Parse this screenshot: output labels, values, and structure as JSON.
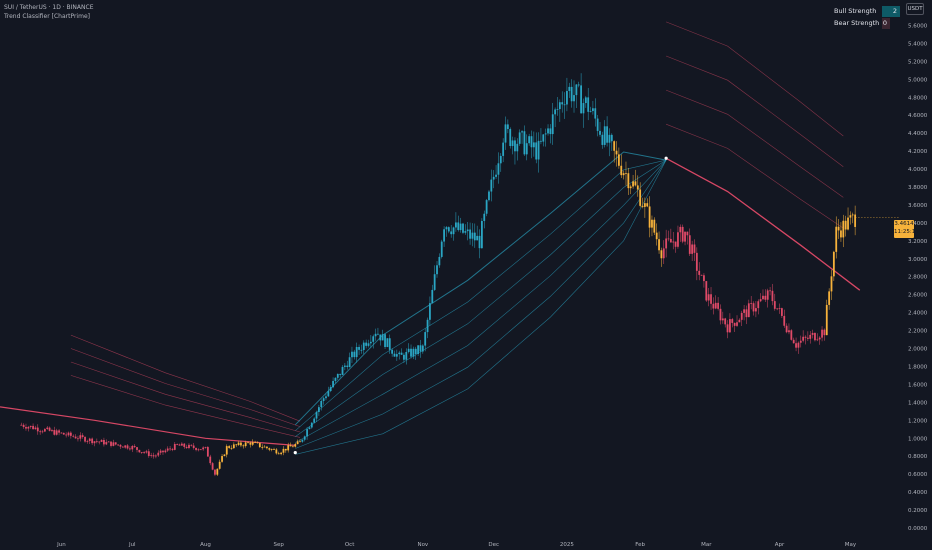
{
  "header": {
    "symbol": "SUI / TetherUS · 1D · BINANCE",
    "indicator": "Trend Classifier [ChartPrime]"
  },
  "strength_panel": {
    "bull_label": "Bull Strength",
    "bull_value": "2",
    "bear_label": "Bear Strength",
    "bear_value": "0"
  },
  "currency": "USDT",
  "price_tag": {
    "price": "3.4614",
    "countdown": "11:25:14"
  },
  "colors": {
    "background": "#131722",
    "bull": "#2aa6c4",
    "bear": "#e04a68",
    "neutral": "#f7b23b",
    "axis_text": "#b2b5be"
  },
  "chart_data": {
    "type": "candlestick",
    "title": "SUI / TetherUS · 1D · BINANCE",
    "ylim": [
      0,
      5.75
    ],
    "y_ticks": [
      "0.0000",
      "0.2000",
      "0.4000",
      "0.6000",
      "0.8000",
      "1.0000",
      "1.2000",
      "1.4000",
      "1.6000",
      "1.8000",
      "2.0000",
      "2.2000",
      "2.4000",
      "2.6000",
      "2.8000",
      "3.0000",
      "3.2000",
      "3.4000",
      "3.6000",
      "3.8000",
      "4.0000",
      "4.2000",
      "4.4000",
      "4.6000",
      "4.8000",
      "5.0000",
      "5.2000",
      "5.4000",
      "5.6000"
    ],
    "x_ticks": [
      "Jun",
      "Jul",
      "Aug",
      "Sep",
      "Oct",
      "Nov",
      "Dec",
      "2025",
      "Feb",
      "Mar",
      "Apr",
      "May"
    ],
    "grid": false,
    "price_path": [
      {
        "date": "2024-05-15",
        "price": 1.15,
        "trend": "bear"
      },
      {
        "date": "2024-06-01",
        "price": 1.05,
        "trend": "bear"
      },
      {
        "date": "2024-06-15",
        "price": 0.97,
        "trend": "bear"
      },
      {
        "date": "2024-07-01",
        "price": 0.9,
        "trend": "bear"
      },
      {
        "date": "2024-07-10",
        "price": 0.8,
        "trend": "bear"
      },
      {
        "date": "2024-07-20",
        "price": 0.92,
        "trend": "bear"
      },
      {
        "date": "2024-08-01",
        "price": 0.88,
        "trend": "bear"
      },
      {
        "date": "2024-08-05",
        "price": 0.6,
        "trend": "bear"
      },
      {
        "date": "2024-08-10",
        "price": 0.9,
        "trend": "neutral"
      },
      {
        "date": "2024-08-20",
        "price": 0.95,
        "trend": "neutral"
      },
      {
        "date": "2024-09-01",
        "price": 0.85,
        "trend": "neutral"
      },
      {
        "date": "2024-09-10",
        "price": 0.95,
        "trend": "neutral"
      },
      {
        "date": "2024-09-20",
        "price": 1.45,
        "trend": "bull"
      },
      {
        "date": "2024-09-30",
        "price": 1.85,
        "trend": "bull"
      },
      {
        "date": "2024-10-12",
        "price": 2.2,
        "trend": "bull"
      },
      {
        "date": "2024-10-22",
        "price": 1.9,
        "trend": "bull"
      },
      {
        "date": "2024-11-01",
        "price": 2.0,
        "trend": "bull"
      },
      {
        "date": "2024-11-10",
        "price": 3.4,
        "trend": "bull"
      },
      {
        "date": "2024-11-25",
        "price": 3.2,
        "trend": "bull"
      },
      {
        "date": "2024-12-05",
        "price": 4.4,
        "trend": "bull"
      },
      {
        "date": "2024-12-20",
        "price": 4.2,
        "trend": "bull"
      },
      {
        "date": "2025-01-01",
        "price": 4.9,
        "trend": "bull"
      },
      {
        "date": "2025-01-10",
        "price": 4.7,
        "trend": "bull"
      },
      {
        "date": "2025-01-20",
        "price": 4.2,
        "trend": "bull"
      },
      {
        "date": "2025-02-01",
        "price": 3.7,
        "trend": "neutral"
      },
      {
        "date": "2025-02-10",
        "price": 3.1,
        "trend": "neutral"
      },
      {
        "date": "2025-02-20",
        "price": 3.3,
        "trend": "bear"
      },
      {
        "date": "2025-03-01",
        "price": 2.6,
        "trend": "bear"
      },
      {
        "date": "2025-03-10",
        "price": 2.25,
        "trend": "bear"
      },
      {
        "date": "2025-03-20",
        "price": 2.45,
        "trend": "bear"
      },
      {
        "date": "2025-03-28",
        "price": 2.6,
        "trend": "bear"
      },
      {
        "date": "2025-04-08",
        "price": 2.05,
        "trend": "bear"
      },
      {
        "date": "2025-04-20",
        "price": 2.2,
        "trend": "bear"
      },
      {
        "date": "2025-04-25",
        "price": 3.3,
        "trend": "neutral"
      },
      {
        "date": "2025-05-03",
        "price": 3.46,
        "trend": "neutral"
      }
    ]
  }
}
